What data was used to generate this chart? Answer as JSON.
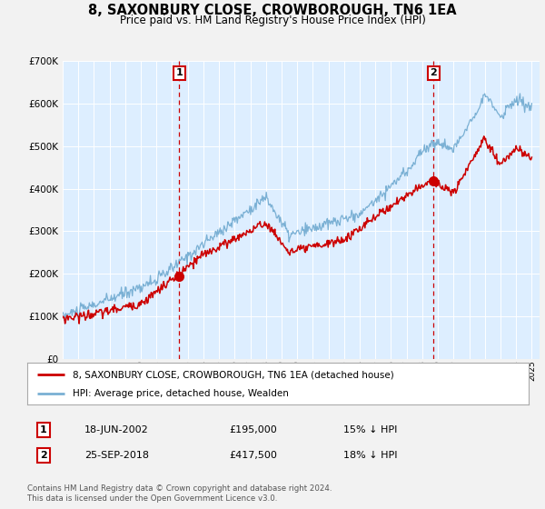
{
  "title": "8, SAXONBURY CLOSE, CROWBOROUGH, TN6 1EA",
  "subtitle": "Price paid vs. HM Land Registry's House Price Index (HPI)",
  "background_color": "#f2f2f2",
  "plot_bg_color": "#ddeeff",
  "legend_label_red": "8, SAXONBURY CLOSE, CROWBOROUGH, TN6 1EA (detached house)",
  "legend_label_blue": "HPI: Average price, detached house, Wealden",
  "transaction1_date": "18-JUN-2002",
  "transaction1_price": "£195,000",
  "transaction1_hpi": "15% ↓ HPI",
  "transaction2_date": "25-SEP-2018",
  "transaction2_price": "£417,500",
  "transaction2_hpi": "18% ↓ HPI",
  "footer": "Contains HM Land Registry data © Crown copyright and database right 2024.\nThis data is licensed under the Open Government Licence v3.0.",
  "ylim": [
    0,
    700000
  ],
  "yticks": [
    0,
    100000,
    200000,
    300000,
    400000,
    500000,
    600000,
    700000
  ],
  "year_start": 1995,
  "year_end": 2025,
  "transaction1_year": 2002.46,
  "transaction2_year": 2018.73,
  "transaction1_value": 195000,
  "transaction2_value": 417500,
  "red_color": "#cc0000",
  "blue_color": "#7ab0d4"
}
